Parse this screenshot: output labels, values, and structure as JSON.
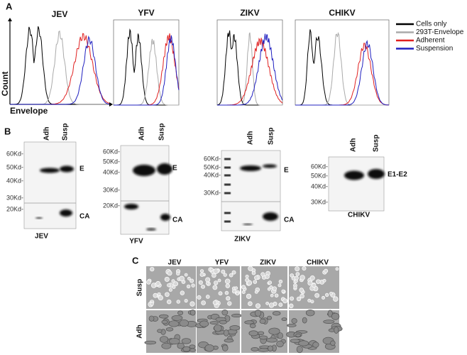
{
  "panel_a": {
    "label": "A",
    "plots": [
      {
        "title": "JEV"
      },
      {
        "title": "YFV"
      },
      {
        "title": "ZIKV"
      },
      {
        "title": "CHIKV"
      }
    ],
    "y_label": "Count",
    "x_label": "Envelope",
    "legend": [
      "Cells only",
      "293T-Envelope",
      "Adherent",
      "Suspension"
    ]
  },
  "panel_b": {
    "label": "B",
    "blots": [
      {
        "name": "JEV",
        "lanes": [
          "Adh",
          "Susp"
        ],
        "markers": [
          "60Kd-",
          "50Kd-",
          "40Kd-",
          "30Kd-",
          "20Kd-"
        ],
        "bands": [
          "E",
          "CA"
        ]
      },
      {
        "name": "YFV",
        "lanes": [
          "Adh",
          "Susp"
        ],
        "markers": [
          "60Kd-",
          "50Kd-",
          "40Kd-",
          "30Kd-",
          "20Kd-"
        ],
        "bands": [
          "E",
          "CA"
        ]
      },
      {
        "name": "ZIKV",
        "lanes": [
          "Adh",
          "Susp"
        ],
        "markers": [
          "60Kd-",
          "50Kd-",
          "40Kd-",
          "30Kd-"
        ],
        "bands": [
          "E",
          "CA"
        ]
      },
      {
        "name": "CHIKV",
        "lanes": [
          "Adh",
          "Susp"
        ],
        "markers": [
          "60Kd-",
          "50Kd-",
          "40Kd-",
          "30Kd-"
        ],
        "bands": [
          "E1-E2"
        ]
      }
    ]
  },
  "panel_c": {
    "label": "C",
    "columns": [
      "JEV",
      "YFV",
      "ZIKV",
      "CHIKV"
    ],
    "rows": [
      "Susp",
      "Adh"
    ]
  }
}
